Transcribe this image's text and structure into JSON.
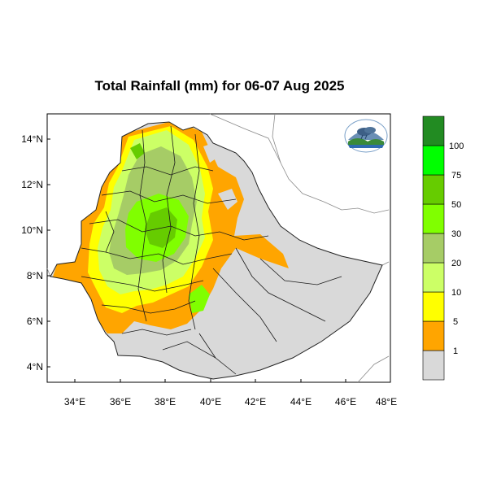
{
  "title": "Total Rainfall (mm) for 06-07 Aug 2025",
  "map": {
    "x_ticks": [
      "34°E",
      "36°E",
      "38°E",
      "40°E",
      "42°E",
      "44°E",
      "46°E",
      "48°E"
    ],
    "y_ticks": [
      "14°N",
      "12°N",
      "10°N",
      "8°N",
      "6°N",
      "4°N"
    ],
    "lon_range": [
      33,
      48
    ],
    "lat_range": [
      3.2,
      15
    ],
    "background_color": "#ffffff",
    "no_rain_color": "#d9d9d9",
    "logo_icon": "ethiopian-meteorology-institute-logo-icon"
  },
  "legend": {
    "labels": [
      "1",
      "5",
      "10",
      "20",
      "30",
      "50",
      "75",
      "100"
    ],
    "colors": [
      "#d9d9d9",
      "#ffa500",
      "#ffff00",
      "#ccff66",
      "#a6cc66",
      "#80ff00",
      "#66cc00",
      "#00ff00",
      "#228b22"
    ]
  }
}
